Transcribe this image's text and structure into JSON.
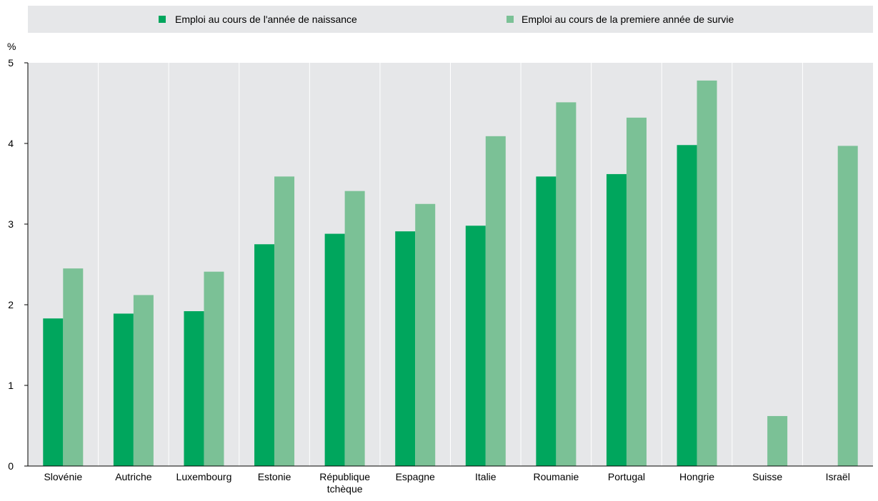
{
  "chart_data": {
    "type": "bar",
    "ylabel": "%",
    "ylim": [
      0,
      5
    ],
    "yticks": [
      "0",
      "1",
      "2",
      "3",
      "4",
      "5"
    ],
    "grid": "vertical",
    "legend_position": "top",
    "categories": [
      "Slovénie",
      "Autriche",
      "Luxembourg",
      "Estonie",
      "République tchèque",
      "Espagne",
      "Italie",
      "Roumanie",
      "Portugal",
      "Hongrie",
      "Suisse",
      "Israël"
    ],
    "series": [
      {
        "name": "Emploi au cours de l'année de naissance",
        "color": "#00a65d",
        "values": [
          1.83,
          1.89,
          1.92,
          2.75,
          2.88,
          2.91,
          2.98,
          3.59,
          3.62,
          3.98,
          null,
          null
        ]
      },
      {
        "name": "Emploi au cours de la premiere année de survie",
        "color": "#7bc196",
        "values": [
          2.45,
          2.12,
          2.41,
          3.59,
          3.41,
          3.25,
          4.09,
          4.51,
          4.32,
          4.78,
          0.62,
          3.97
        ]
      }
    ]
  }
}
